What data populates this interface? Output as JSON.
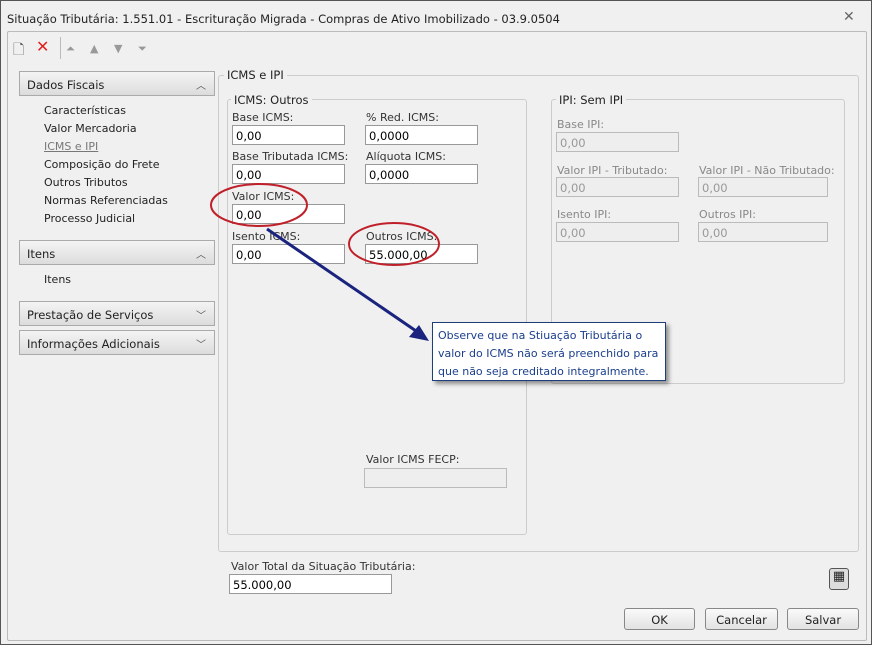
{
  "window": {
    "title": "Situação Tributária: 1.551.01 - Escrituração Migrada - Compras de Ativo Imobilizado - 03.9.0504"
  },
  "toolbar": {
    "icons": [
      "new-document-icon",
      "delete-icon",
      "first-icon",
      "previous-icon",
      "next-icon",
      "last-icon"
    ]
  },
  "sidebar": {
    "sections": [
      {
        "label": "Dados Fiscais",
        "expanded": true,
        "items": [
          "Características",
          "Valor Mercadoria",
          "ICMS e IPI",
          "Composição do Frete",
          "Outros Tributos",
          "Normas Referenciadas",
          "Processo Judicial"
        ],
        "selected": "ICMS e IPI"
      },
      {
        "label": "Itens",
        "expanded": true,
        "items": [
          "Itens"
        ]
      },
      {
        "label": "Prestação de Serviços",
        "expanded": false
      },
      {
        "label": "Informações Adicionais",
        "expanded": false
      }
    ]
  },
  "main": {
    "group_title": "ICMS e IPI",
    "icms": {
      "title": "ICMS: Outros",
      "base_label": "Base ICMS:",
      "base_value": "0,00",
      "red_label": "% Red. ICMS:",
      "red_value": "0,0000",
      "base_trib_label": "Base Tributada ICMS:",
      "base_trib_value": "0,00",
      "aliq_label": "Alíquota ICMS:",
      "aliq_value": "0,0000",
      "valor_label": "Valor ICMS:",
      "valor_value": "0,00",
      "isento_label": "Isento ICMS:",
      "isento_value": "0,00",
      "outros_label": "Outros ICMS:",
      "outros_value": "55.000,00",
      "fecp_label": "Valor ICMS FECP:",
      "fecp_value": ""
    },
    "ipi": {
      "title": "IPI: Sem IPI",
      "base_label": "Base IPI:",
      "base_value": "0,00",
      "trib_label": "Valor IPI - Tributado:",
      "trib_value": "0,00",
      "nao_trib_label": "Valor IPI - Não Tributado:",
      "nao_trib_value": "0,00",
      "isento_label": "Isento IPI:",
      "isento_value": "0,00",
      "outros_label": "Outros IPI:",
      "outros_value": "0,00"
    },
    "tooltip": "Observe que na Stiuação Tributária o valor do ICMS não será preenchido para que não seja creditado integralmente.",
    "annotation_color": "#c0202a",
    "arrow_color": "#1a237e"
  },
  "footer": {
    "total_label": "Valor Total da Situação Tributária:",
    "total_value": "55.000,00",
    "ok": "OK",
    "cancel": "Cancelar",
    "save": "Salvar"
  }
}
